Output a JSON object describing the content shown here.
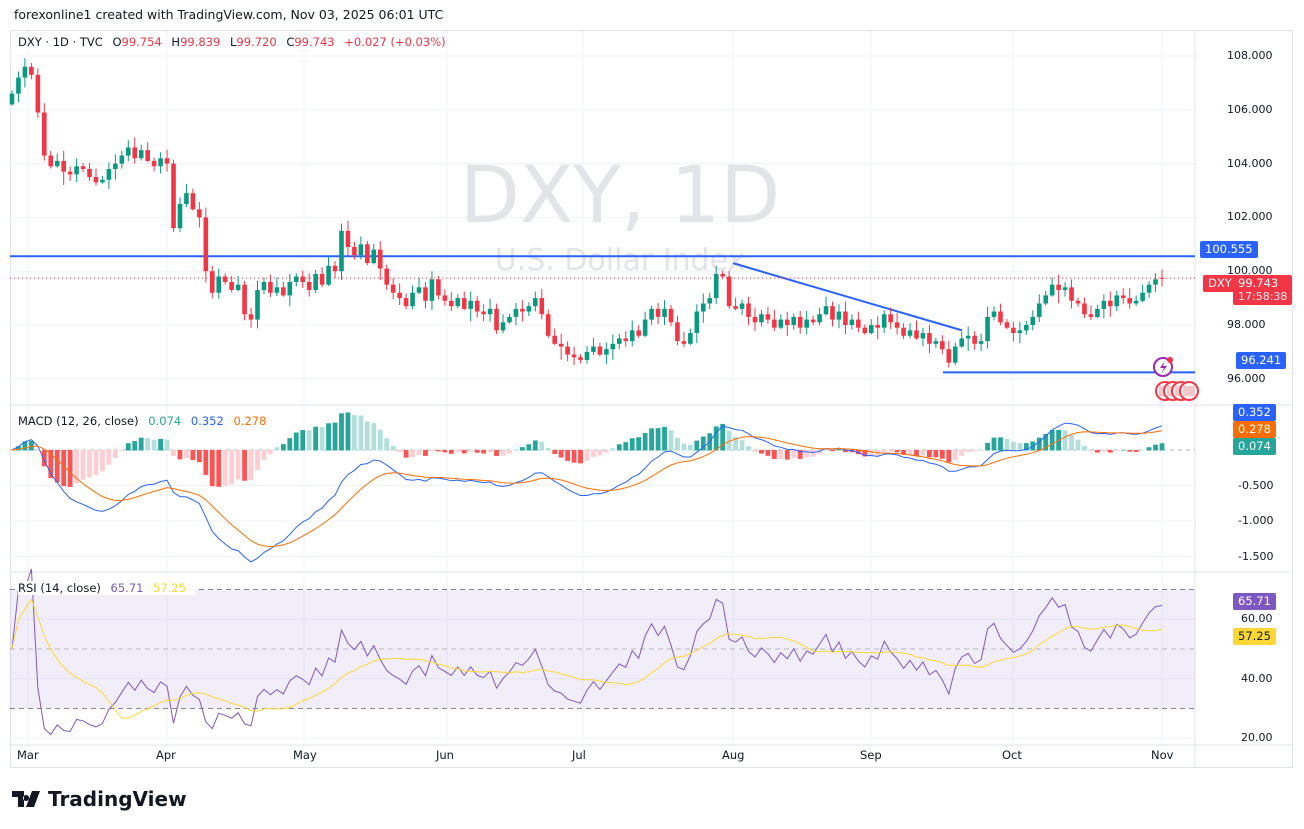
{
  "caption": "forexonline1 created with TradingView.com, Nov 03, 2025 06:01 UTC",
  "header": {
    "symbol_line": "DXY · 1D · TVC",
    "open_label": "O",
    "open": "99.754",
    "high_label": "H",
    "high": "99.839",
    "low_label": "L",
    "low": "99.720",
    "close_label": "C",
    "close": "99.743",
    "change": "+0.027 (+0.03%)"
  },
  "watermark": {
    "title": "DXY, 1D",
    "subtitle": "U.S. Dollar Index"
  },
  "price_axis": {
    "ticks": [
      "108.000",
      "106.000",
      "104.000",
      "102.000",
      "100.000",
      "98.000",
      "96.000"
    ],
    "resistance_label": "100.555",
    "support_label": "96.241",
    "symbol_tag": "DXY",
    "last_price": "99.743",
    "countdown": "17:58:38"
  },
  "macd": {
    "title": "MACD (12, 26, close)",
    "histogram": "0.074",
    "macd": "0.352",
    "signal": "0.278",
    "ticks": [
      "-0.500",
      "-1.000",
      "-1.500"
    ]
  },
  "rsi": {
    "title": "RSI (14, close)",
    "rsi": "65.71",
    "ma": "57.25",
    "ticks": [
      "60.00",
      "40.00",
      "20.00"
    ]
  },
  "time_axis": [
    "Mar",
    "Apr",
    "May",
    "Jun",
    "Jul",
    "Aug",
    "Sep",
    "Oct",
    "Nov"
  ],
  "logo": "TradingView",
  "colors": {
    "up": "#089981",
    "down": "#f23645",
    "line_blue": "#2962ff",
    "macd_line": "#2962ff",
    "signal_line": "#ff6d00",
    "rsi_line": "#7e57c2",
    "rsi_ma": "#fdd835",
    "hist_up": "#26a69a",
    "hist_up_light": "#b2dfdb",
    "hist_down": "#ff5252",
    "hist_down_light": "#ffcdd2"
  },
  "chart_data": {
    "type": "candlestick",
    "price_range": [
      95.5,
      108.5
    ],
    "horizontal_levels": [
      100.555,
      96.241
    ],
    "trendline": {
      "from": {
        "month": "Aug",
        "price": 100.3
      },
      "to": {
        "month": "Sep",
        "price": 97.8
      }
    },
    "closes": [
      106.6,
      107.2,
      107.6,
      107.3,
      105.9,
      104.3,
      103.9,
      104.1,
      103.7,
      103.6,
      103.9,
      103.8,
      103.5,
      103.3,
      103.4,
      103.8,
      104.0,
      104.3,
      104.6,
      104.2,
      104.5,
      104.1,
      103.9,
      104.2,
      104.0,
      101.6,
      102.5,
      102.9,
      102.3,
      102.0,
      100.0,
      99.2,
      99.8,
      99.6,
      99.3,
      99.5,
      98.4,
      98.2,
      99.3,
      99.6,
      99.2,
      99.4,
      99.1,
      99.6,
      99.8,
      99.6,
      99.3,
      99.9,
      99.5,
      100.2,
      100.0,
      101.5,
      100.9,
      100.6,
      101.0,
      100.3,
      100.8,
      100.1,
      99.5,
      99.2,
      99.0,
      98.7,
      99.2,
      99.4,
      98.9,
      99.7,
      99.1,
      98.9,
      98.7,
      99.0,
      98.6,
      98.9,
      98.5,
      98.4,
      98.6,
      97.8,
      98.1,
      98.3,
      98.6,
      98.5,
      98.7,
      99.0,
      98.4,
      97.6,
      97.3,
      97.2,
      96.9,
      96.8,
      96.7,
      97.0,
      97.2,
      96.9,
      97.1,
      97.3,
      97.5,
      97.4,
      97.8,
      97.6,
      98.2,
      98.6,
      98.3,
      98.6,
      98.1,
      97.4,
      97.3,
      97.7,
      98.5,
      98.8,
      99.0,
      99.9,
      99.8,
      98.7,
      98.6,
      98.8,
      98.3,
      98.1,
      98.4,
      98.2,
      97.9,
      98.2,
      98.0,
      98.3,
      97.9,
      98.2,
      98.1,
      98.4,
      98.7,
      98.2,
      98.5,
      98.0,
      98.2,
      97.9,
      97.7,
      98.0,
      97.9,
      98.4,
      98.1,
      97.9,
      97.6,
      97.8,
      97.5,
      97.7,
      97.3,
      97.4,
      97.1,
      96.6,
      97.2,
      97.5,
      97.6,
      97.3,
      97.4,
      98.3,
      98.5,
      98.1,
      97.9,
      97.7,
      97.8,
      98.0,
      98.3,
      98.8,
      99.1,
      99.5,
      99.3,
      99.4,
      98.9,
      98.8,
      98.4,
      98.3,
      98.6,
      98.9,
      98.7,
      99.1,
      99.0,
      98.8,
      98.9,
      99.2,
      99.5,
      99.7,
      99.743
    ]
  }
}
